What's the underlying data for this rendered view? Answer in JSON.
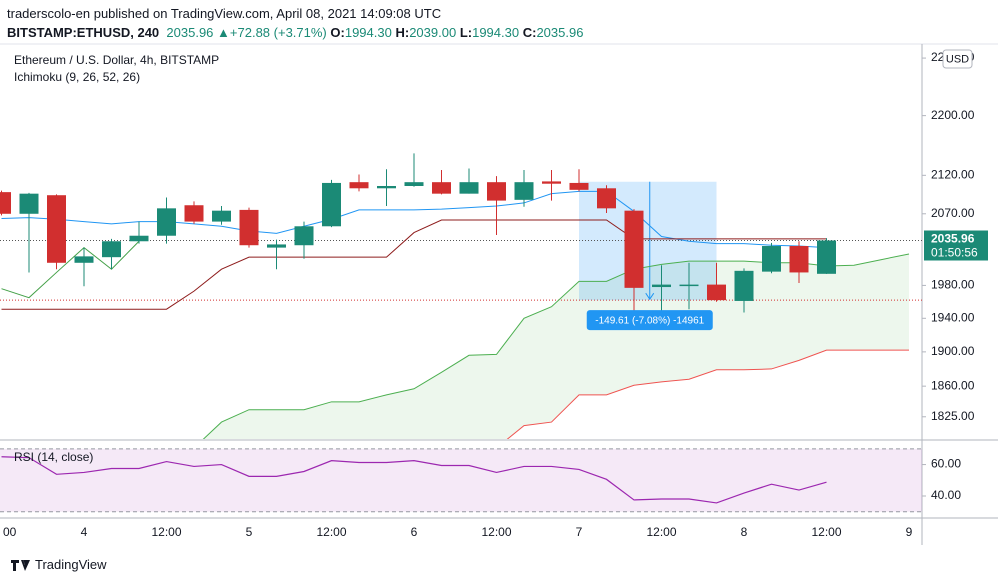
{
  "header": {
    "published": "traderscolo-en published on TradingView.com, April 08, 2021 14:09:08 UTC",
    "symbol": "BITSTAMP:ETHUSD, 240",
    "price": "2035.96",
    "change": "+72.88 (+3.71%)",
    "o_label": "O:",
    "o": "1994.30",
    "h_label": "H:",
    "h": "2039.00",
    "l_label": "L:",
    "l": "1994.30",
    "c_label": "C:",
    "c": "2035.96"
  },
  "footer": {
    "brand": "TradingView"
  },
  "chart_data": [
    {
      "type": "candlestick",
      "title": "Ethereum / U.S. Dollar, 4h, BITSTAMP",
      "indicator": "Ichimoku (9, 26, 52, 26)",
      "categories": [
        "00",
        null,
        null,
        "4",
        null,
        null,
        "12:00",
        null,
        null,
        "5",
        null,
        null,
        "12:00",
        null,
        null,
        "6",
        null,
        null,
        "12:00",
        null,
        null,
        "7",
        null,
        null,
        "12:00",
        null,
        null,
        "8",
        null,
        null,
        "12:00",
        null,
        null,
        "9"
      ],
      "open": [
        2098,
        2070,
        2094,
        2008,
        2015,
        2035,
        2042,
        2081,
        2060,
        2075,
        2027,
        2030,
        2054,
        2111,
        2103,
        2106,
        2111,
        2096,
        2111,
        2088,
        2112,
        2110,
        2103,
        2074,
        1978,
        1980,
        1981,
        1961,
        1997,
        2029,
        1994.3,
        null,
        null,
        null
      ],
      "high": [
        2100,
        2097,
        2095,
        2027,
        2038,
        2060,
        2091,
        2086,
        2080,
        2078,
        2037,
        2060,
        2114,
        2121,
        2128,
        2149,
        2127,
        2129,
        2119,
        2127,
        2127,
        2128,
        2107,
        2076,
        2005,
        2008,
        2008,
        2001,
        2033,
        2035,
        2039,
        null,
        null,
        null
      ],
      "low": [
        2068,
        1996,
        2000,
        1979,
        2000,
        2032,
        2032,
        2057,
        2056,
        2027,
        2000,
        2013,
        2053,
        2099,
        2080,
        2105,
        2095,
        2096,
        2043,
        2079,
        2087,
        2099,
        2071,
        1946,
        1945,
        1951,
        1960,
        1947,
        1995,
        1983,
        1994.3,
        null,
        null,
        null
      ],
      "close": [
        2070,
        2096,
        2008,
        2016,
        2035,
        2042,
        2077,
        2060,
        2074,
        2030,
        2031,
        2054,
        2110,
        2103,
        2106,
        2111,
        2096,
        2111,
        2087,
        2111,
        2109,
        2101,
        2077,
        1977,
        1981,
        1981,
        1962,
        1998,
        2029,
        1996,
        2035.96,
        null,
        null,
        null
      ],
      "up_color": "#1b8a76",
      "down_color": "#d12f2f",
      "series": [
        {
          "color": "#2196f3",
          "values": [
            2064,
            2065,
            2063,
            2060,
            2057,
            2060,
            2060,
            2057,
            2054,
            2048,
            2045,
            2054,
            2063,
            2075,
            2075,
            2075,
            2076,
            2078,
            2080,
            2084,
            2096,
            2099,
            2099,
            2073,
            2041,
            2035,
            2032,
            2032,
            2030,
            2029,
            2027,
            null,
            null,
            null
          ]
        },
        {
          "color": "#8e1c1c",
          "values": [
            1951,
            1951,
            1951,
            1951,
            1951,
            1951,
            1951,
            1973,
            2000,
            2015,
            2015,
            2015,
            2015,
            2015,
            2015,
            2046,
            2062,
            2062,
            2062,
            2062,
            2062,
            2062,
            2062,
            2038,
            2038,
            2038,
            2038,
            2038,
            2038,
            2038,
            2038,
            null,
            null,
            null
          ]
        },
        {
          "color": "#43a047",
          "values": [
            1976,
            1965,
            1996,
            2027,
            2000,
            2035,
            null,
            null,
            null,
            null,
            null,
            null,
            null,
            null,
            null,
            null,
            null,
            null,
            null,
            null,
            null,
            null,
            null,
            null,
            null,
            null,
            null,
            null,
            null,
            null,
            null,
            null,
            null,
            null
          ]
        },
        {
          "color": "#4caf50",
          "cloud": "upper",
          "values": [
            null,
            null,
            null,
            null,
            null,
            null,
            null,
            1790,
            1819,
            1833,
            1833,
            1833,
            1842,
            1842,
            1850,
            1857,
            1876,
            1896,
            1897,
            1940,
            1954,
            1985,
            1985,
            2000,
            2006,
            2010,
            2010,
            2010,
            2008,
            2008,
            2004,
            2005,
            2012,
            2019
          ]
        },
        {
          "color": "#ef5350",
          "cloud": "lower",
          "values": [
            null,
            null,
            null,
            null,
            null,
            null,
            null,
            null,
            null,
            null,
            null,
            null,
            null,
            null,
            null,
            null,
            null,
            null,
            1790,
            1815,
            1819,
            1850,
            1850,
            1861,
            1865,
            1868,
            1879,
            1879,
            1880,
            1890,
            1902,
            1902,
            1902,
            1902
          ]
        }
      ],
      "cloud_color": "rgba(76,175,80,0.10)",
      "ylim": [
        1800,
        2300
      ],
      "log_scale": true,
      "grid": false,
      "yticks": [
        {
          "value": 1825,
          "label": "1825.00"
        },
        {
          "value": 1860,
          "label": "1860.00"
        },
        {
          "value": 1900,
          "label": "1900.00"
        },
        {
          "value": 1940,
          "label": "1940.00"
        },
        {
          "value": 1980,
          "label": "1980.00"
        },
        {
          "value": 2070,
          "label": "2070.00"
        },
        {
          "value": 2120,
          "label": "2120.00"
        },
        {
          "value": 2200,
          "label": "2200.00"
        },
        {
          "value": 2280,
          "label": "2280.00"
        }
      ],
      "currency": "USD",
      "last_price_label": "2035.96",
      "countdown": "01:50:56",
      "measure": {
        "start": 2111.57,
        "end": 1961.96,
        "label": "-149.61 (-7.08%) -14961"
      }
    },
    {
      "type": "line",
      "title": "RSI (14, close)",
      "series": [
        {
          "color": "#9c27b0",
          "values": [
            65,
            64.4,
            53.8,
            55,
            57.5,
            57.5,
            61.9,
            58.8,
            60,
            52.5,
            52.5,
            55.6,
            62.5,
            61.3,
            61.3,
            62.5,
            59.4,
            59.4,
            55,
            58.8,
            58.8,
            56.9,
            50.6,
            37.5,
            38.1,
            38.1,
            35.6,
            41.9,
            47.5,
            43.8,
            48.8,
            null,
            null,
            null
          ]
        }
      ],
      "bands": [
        30,
        70
      ],
      "band_color": "rgba(156,39,176,0.10)",
      "ylim": [
        26,
        75
      ],
      "yticks": [
        {
          "value": 40,
          "label": "40.00"
        },
        {
          "value": 60,
          "label": "60.00"
        }
      ]
    }
  ]
}
